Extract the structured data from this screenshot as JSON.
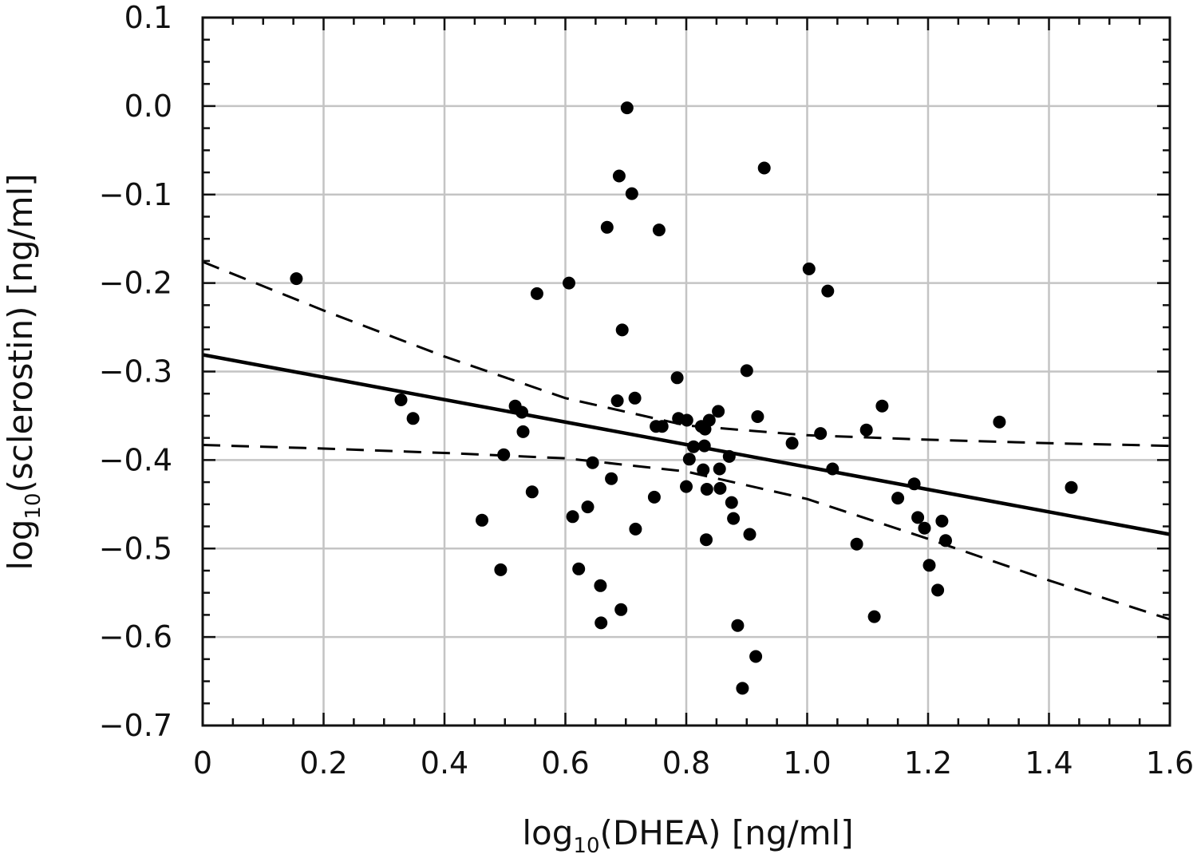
{
  "chart_data": {
    "type": "scatter",
    "title": "",
    "xlabel": {
      "prefix": "log",
      "subscript": "10",
      "suffix": "(DHEA) [ng/ml]"
    },
    "ylabel": {
      "prefix": "log",
      "subscript": "10",
      "suffix": "(sclerostin) [ng/ml]"
    },
    "xlim": [
      0,
      1.6
    ],
    "ylim": [
      -0.7,
      0.1
    ],
    "x_ticks": [
      0,
      0.2,
      0.4,
      0.6,
      0.8,
      1.0,
      1.2,
      1.4,
      1.6
    ],
    "x_tick_labels": [
      "0",
      "0.2",
      "0.4",
      "0.6",
      "0.8",
      "1.0",
      "1.2",
      "1.4",
      "1.6"
    ],
    "y_ticks": [
      0.1,
      0.0,
      -0.1,
      -0.2,
      -0.3,
      -0.4,
      -0.5,
      -0.6,
      -0.7
    ],
    "y_tick_labels": [
      "0.1",
      "0.0",
      "−0.1",
      "−0.2",
      "−0.3",
      "−0.4",
      "−0.5",
      "−0.6",
      "−0.7"
    ],
    "grid": true,
    "points": [
      [
        0.155,
        -0.195
      ],
      [
        0.328,
        -0.332
      ],
      [
        0.348,
        -0.353
      ],
      [
        0.462,
        -0.468
      ],
      [
        0.493,
        -0.524
      ],
      [
        0.498,
        -0.394
      ],
      [
        0.517,
        -0.339
      ],
      [
        0.528,
        -0.346
      ],
      [
        0.53,
        -0.368
      ],
      [
        0.545,
        -0.436
      ],
      [
        0.553,
        -0.212
      ],
      [
        0.606,
        -0.2
      ],
      [
        0.612,
        -0.464
      ],
      [
        0.622,
        -0.523
      ],
      [
        0.637,
        -0.453
      ],
      [
        0.645,
        -0.403
      ],
      [
        0.658,
        -0.542
      ],
      [
        0.659,
        -0.584
      ],
      [
        0.669,
        -0.137
      ],
      [
        0.676,
        -0.421
      ],
      [
        0.686,
        -0.333
      ],
      [
        0.689,
        -0.079
      ],
      [
        0.692,
        -0.569
      ],
      [
        0.694,
        -0.253
      ],
      [
        0.702,
        -0.002
      ],
      [
        0.71,
        -0.099
      ],
      [
        0.715,
        -0.33
      ],
      [
        0.716,
        -0.478
      ],
      [
        0.747,
        -0.442
      ],
      [
        0.75,
        -0.362
      ],
      [
        0.755,
        -0.14
      ],
      [
        0.76,
        -0.362
      ],
      [
        0.785,
        -0.307
      ],
      [
        0.787,
        -0.353
      ],
      [
        0.801,
        -0.355
      ],
      [
        0.8,
        -0.43
      ],
      [
        0.805,
        -0.399
      ],
      [
        0.812,
        -0.385
      ],
      [
        0.825,
        -0.362
      ],
      [
        0.828,
        -0.411
      ],
      [
        0.83,
        -0.384
      ],
      [
        0.831,
        -0.365
      ],
      [
        0.833,
        -0.49
      ],
      [
        0.834,
        -0.433
      ],
      [
        0.838,
        -0.355
      ],
      [
        0.853,
        -0.345
      ],
      [
        0.855,
        -0.41
      ],
      [
        0.856,
        -0.432
      ],
      [
        0.871,
        -0.396
      ],
      [
        0.875,
        -0.448
      ],
      [
        0.878,
        -0.466
      ],
      [
        0.885,
        -0.587
      ],
      [
        0.893,
        -0.658
      ],
      [
        0.9,
        -0.299
      ],
      [
        0.905,
        -0.484
      ],
      [
        0.915,
        -0.622
      ],
      [
        0.918,
        -0.351
      ],
      [
        0.929,
        -0.07
      ],
      [
        0.975,
        -0.381
      ],
      [
        1.003,
        -0.184
      ],
      [
        1.022,
        -0.37
      ],
      [
        1.034,
        -0.209
      ],
      [
        1.042,
        -0.41
      ],
      [
        1.082,
        -0.495
      ],
      [
        1.098,
        -0.366
      ],
      [
        1.111,
        -0.577
      ],
      [
        1.124,
        -0.339
      ],
      [
        1.15,
        -0.443
      ],
      [
        1.177,
        -0.427
      ],
      [
        1.183,
        -0.465
      ],
      [
        1.194,
        -0.477
      ],
      [
        1.202,
        -0.519
      ],
      [
        1.216,
        -0.547
      ],
      [
        1.223,
        -0.469
      ],
      [
        1.229,
        -0.491
      ],
      [
        1.318,
        -0.357
      ],
      [
        1.437,
        -0.431
      ]
    ],
    "regression_line": {
      "style": "solid",
      "x": [
        0,
        1.6
      ],
      "y": [
        -0.281,
        -0.484
      ]
    },
    "confidence_bands": [
      {
        "style": "dashed",
        "x": [
          0,
          0.2,
          0.4,
          0.6,
          0.8,
          1.0,
          1.2,
          1.4,
          1.6
        ],
        "y": [
          -0.176,
          -0.231,
          -0.283,
          -0.33,
          -0.361,
          -0.372,
          -0.377,
          -0.381,
          -0.384
        ]
      },
      {
        "style": "dashed",
        "x": [
          0,
          0.2,
          0.4,
          0.6,
          0.8,
          1.0,
          1.2,
          1.4,
          1.6
        ],
        "y": [
          -0.383,
          -0.387,
          -0.392,
          -0.398,
          -0.413,
          -0.444,
          -0.489,
          -0.536,
          -0.58
        ]
      }
    ]
  }
}
